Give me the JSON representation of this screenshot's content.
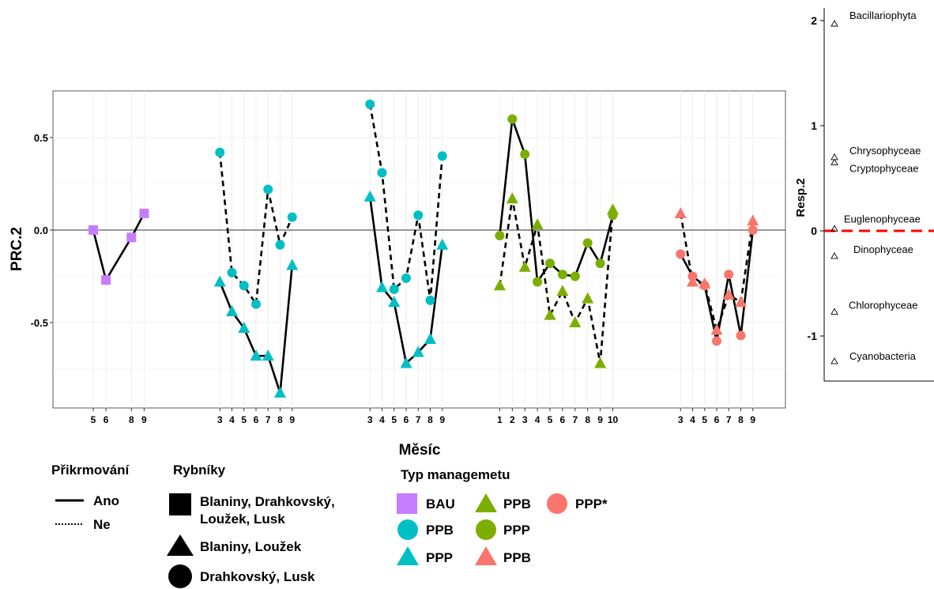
{
  "chart_data": [
    {
      "type": "line",
      "ylabel": "PRC.2",
      "xlabel": "Měsíc",
      "ylim": [
        -0.9,
        0.75
      ],
      "yticks": [
        0.5,
        0.0,
        -0.5
      ],
      "ytick_labels": [
        "0.5",
        "0.0",
        "-0.5"
      ],
      "grid": true,
      "colors": {
        "BAU": "#c77cff",
        "teal": "#00bfc4",
        "olive": "#7cae00",
        "salmon": "#f8766d"
      },
      "series": [
        {
          "group": 0,
          "color": "#c77cff",
          "marker": "square",
          "line": "solid",
          "x": [
            5,
            6,
            8,
            9
          ],
          "y": [
            0.0,
            -0.27,
            -0.04,
            0.09
          ]
        },
        {
          "group": 1,
          "color": "#00bfc4",
          "marker": "circle",
          "line": "dashed",
          "x": [
            3,
            4,
            5,
            6,
            7,
            8,
            9
          ],
          "y": [
            0.42,
            -0.23,
            -0.3,
            -0.4,
            0.22,
            -0.08,
            0.07
          ]
        },
        {
          "group": 1,
          "color": "#00bfc4",
          "marker": "triangle",
          "line": "solid",
          "x": [
            3,
            4,
            5,
            6,
            7,
            8,
            9
          ],
          "y": [
            -0.28,
            -0.44,
            -0.53,
            -0.68,
            -0.68,
            -0.88,
            -0.19
          ]
        },
        {
          "group": 2,
          "color": "#00bfc4",
          "marker": "circle",
          "line": "dashed",
          "x": [
            3,
            4,
            5,
            6,
            7,
            8,
            9
          ],
          "y": [
            0.68,
            0.31,
            -0.32,
            -0.26,
            0.08,
            -0.38,
            0.4
          ]
        },
        {
          "group": 2,
          "color": "#00bfc4",
          "marker": "triangle",
          "line": "solid",
          "x": [
            3,
            4,
            5,
            6,
            7,
            8,
            9
          ],
          "y": [
            0.18,
            -0.31,
            -0.39,
            -0.72,
            -0.66,
            -0.59,
            -0.08
          ]
        },
        {
          "group": 3,
          "color": "#7cae00",
          "marker": "circle",
          "line": "solid",
          "x": [
            1,
            2,
            3,
            4,
            5,
            6,
            7,
            8,
            9,
            10
          ],
          "y": [
            -0.03,
            0.6,
            0.41,
            -0.28,
            -0.18,
            -0.24,
            -0.25,
            -0.07,
            -0.18,
            0.08
          ]
        },
        {
          "group": 3,
          "color": "#7cae00",
          "marker": "triangle",
          "line": "dashed",
          "x": [
            1,
            2,
            3,
            4,
            5,
            6,
            7,
            8,
            9,
            10
          ],
          "y": [
            -0.3,
            0.17,
            -0.2,
            0.03,
            -0.46,
            -0.33,
            -0.5,
            -0.37,
            -0.72,
            0.11
          ]
        },
        {
          "group": 4,
          "color": "#f8766d",
          "marker": "triangle",
          "line": "dashed",
          "x": [
            3,
            4,
            5,
            6,
            7,
            8,
            9
          ],
          "y": [
            0.09,
            -0.28,
            -0.29,
            -0.54,
            -0.35,
            -0.39,
            0.05
          ]
        },
        {
          "group": 4,
          "color": "#f8766d",
          "marker": "circle",
          "line": "solid",
          "x": [
            3,
            4,
            5,
            6,
            7,
            8,
            9
          ],
          "y": [
            -0.13,
            -0.25,
            -0.3,
            -0.6,
            -0.24,
            -0.57,
            0.0
          ]
        }
      ],
      "groups": [
        {
          "ticks": [
            5,
            6,
            8,
            9
          ]
        },
        {
          "ticks": [
            3,
            4,
            5,
            6,
            7,
            8,
            9
          ]
        },
        {
          "ticks": [
            3,
            4,
            5,
            6,
            7,
            8,
            9
          ]
        },
        {
          "ticks": [
            1,
            2,
            3,
            4,
            5,
            6,
            7,
            8,
            9,
            10
          ]
        },
        {
          "ticks": [
            3,
            4,
            5,
            6,
            7,
            8,
            9
          ]
        }
      ]
    },
    {
      "type": "scatter",
      "ylabel": "Resp.2",
      "ylim": [
        -1.4,
        2.1
      ],
      "yticks": [
        2,
        1,
        0,
        -1
      ],
      "ytick_labels": [
        "2",
        "1",
        "0",
        "-1"
      ],
      "zero_line": {
        "color": "#ff0000",
        "style": "dashed"
      },
      "taxa": [
        {
          "name": "Bacillariophyta",
          "value": 1.97
        },
        {
          "name": "Chrysophyceae",
          "value": 0.7
        },
        {
          "name": "Cryptophyceae",
          "value": 0.65
        },
        {
          "name": "Euglenophyceae",
          "value": 0.02
        },
        {
          "name": "Dinophyceae",
          "value": -0.24
        },
        {
          "name": "Chlorophyceae",
          "value": -0.77
        },
        {
          "name": "Cyanobacteria",
          "value": -1.24
        }
      ]
    }
  ],
  "legend": {
    "prikrmovani": {
      "title": "Přikrmování",
      "items": [
        {
          "label": "Ano",
          "style": "solid"
        },
        {
          "label": "Ne",
          "style": "dotted"
        }
      ]
    },
    "rybniky": {
      "title": "Rybníky",
      "items": [
        {
          "shape": "square",
          "line1": "Blaniny, Drahkovský,",
          "line2": "Loužek, Lusk"
        },
        {
          "shape": "triangle",
          "line1": "Blaniny, Loužek"
        },
        {
          "shape": "circle",
          "line1": "Drahkovský, Lusk"
        }
      ]
    },
    "typ": {
      "title": "Typ managemetu",
      "items": [
        {
          "shape": "square",
          "color": "#c77cff",
          "label": "BAU"
        },
        {
          "shape": "circle",
          "color": "#00bfc4",
          "label": "PPB"
        },
        {
          "shape": "triangle",
          "color": "#00bfc4",
          "label": "PPP"
        },
        {
          "shape": "triangle",
          "color": "#7cae00",
          "label": "PPB"
        },
        {
          "shape": "circle",
          "color": "#7cae00",
          "label": "PPP"
        },
        {
          "shape": "triangle",
          "color": "#f8766d",
          "label": "PPB"
        },
        {
          "shape": "circle",
          "color": "#f8766d",
          "label": "PPP*"
        }
      ]
    }
  }
}
